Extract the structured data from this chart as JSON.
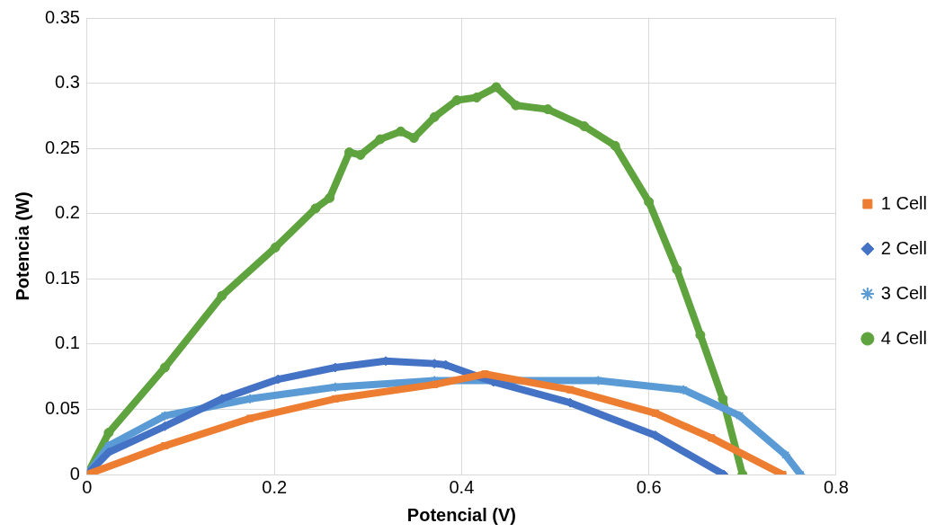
{
  "chart_data": {
    "type": "line",
    "xlabel": "Potencial (V)",
    "ylabel": "Potencia (W)",
    "xlim": [
      0,
      0.8
    ],
    "xticks": [
      0,
      0.2,
      0.4,
      0.6,
      0.8
    ],
    "ylim": [
      0,
      0.35
    ],
    "yticks": [
      0,
      0.05,
      0.1,
      0.15,
      0.2,
      0.25,
      0.3,
      0.35
    ],
    "grid": true,
    "legend": "right",
    "series": [
      {
        "name": "1 Cell",
        "color": "#ed7d31",
        "marker": "square",
        "x": [
          0,
          0.083,
          0.174,
          0.265,
          0.371,
          0.425,
          0.516,
          0.607,
          0.667,
          0.743
        ],
        "values": [
          0,
          0.022,
          0.043,
          0.058,
          0.069,
          0.077,
          0.065,
          0.047,
          0.028,
          0
        ]
      },
      {
        "name": "2 Cell",
        "color": "#4472c4",
        "marker": "diamond",
        "x": [
          0,
          0.023,
          0.083,
          0.144,
          0.204,
          0.265,
          0.319,
          0.371,
          0.383,
          0.434,
          0.516,
          0.607,
          0.68
        ],
        "values": [
          0,
          0.017,
          0.037,
          0.058,
          0.073,
          0.082,
          0.087,
          0.085,
          0.084,
          0.071,
          0.055,
          0.03,
          0
        ]
      },
      {
        "name": "3 Cell",
        "color": "#5b9bd5",
        "marker": "cross",
        "x": [
          0,
          0.023,
          0.083,
          0.174,
          0.265,
          0.371,
          0.455,
          0.546,
          0.637,
          0.697,
          0.746,
          0.762
        ],
        "values": [
          0,
          0.022,
          0.045,
          0.058,
          0.067,
          0.072,
          0.072,
          0.072,
          0.065,
          0.045,
          0.015,
          0
        ]
      },
      {
        "name": "4 Cell",
        "color": "#5fa33e",
        "marker": "circle",
        "x": [
          0,
          0.023,
          0.083,
          0.144,
          0.201,
          0.244,
          0.259,
          0.28,
          0.292,
          0.313,
          0.335,
          0.349,
          0.371,
          0.395,
          0.416,
          0.437,
          0.458,
          0.492,
          0.531,
          0.564,
          0.6,
          0.63,
          0.655,
          0.679,
          0.7
        ],
        "values": [
          0,
          0.032,
          0.082,
          0.137,
          0.174,
          0.204,
          0.212,
          0.247,
          0.245,
          0.257,
          0.263,
          0.258,
          0.274,
          0.287,
          0.289,
          0.297,
          0.283,
          0.28,
          0.267,
          0.252,
          0.209,
          0.157,
          0.107,
          0.058,
          0
        ]
      }
    ]
  }
}
